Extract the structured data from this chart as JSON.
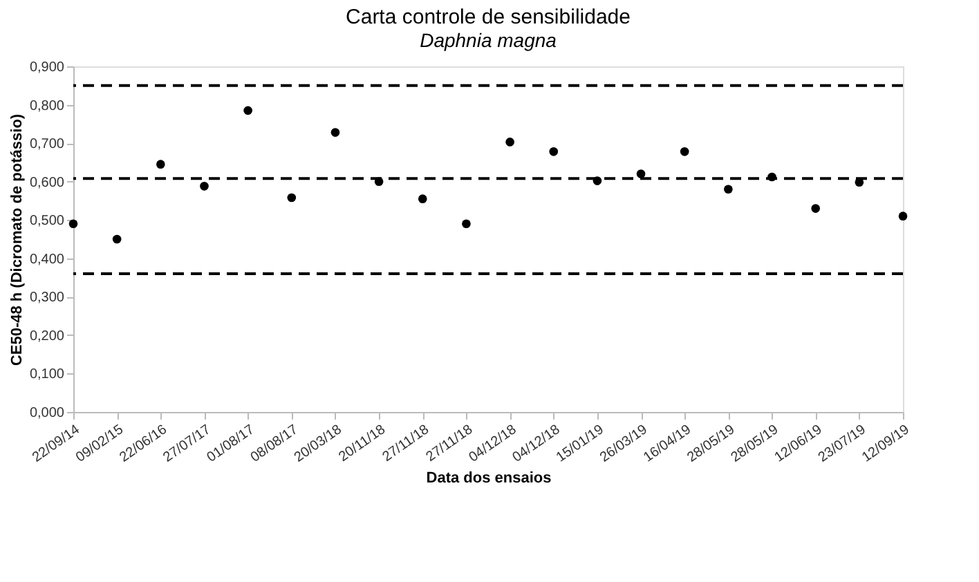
{
  "chart_data": {
    "type": "scatter",
    "title": "Carta controle de sensibilidade",
    "subtitle": "Daphnia magna",
    "xlabel": "Data dos ensaios",
    "ylabel": "CE50-48 h (Dicromato de potássio)",
    "categories": [
      "22/09/14",
      "09/02/15",
      "22/06/16",
      "27/07/17",
      "01/08/17",
      "08/08/17",
      "20/03/18",
      "20/11/18",
      "27/11/18",
      "27/11/18",
      "04/12/18",
      "04/12/18",
      "15/01/19",
      "26/03/19",
      "16/04/19",
      "28/05/19",
      "28/05/19",
      "12/06/19",
      "23/07/19",
      "12/09/19"
    ],
    "series": [
      {
        "color": "#000000",
        "values": [
          0.49,
          0.45,
          0.645,
          0.588,
          0.785,
          0.558,
          0.728,
          0.6,
          0.555,
          0.49,
          0.703,
          0.678,
          0.602,
          0.62,
          0.678,
          0.58,
          0.612,
          0.53,
          0.598,
          0.51
        ]
      }
    ],
    "ylim": [
      0,
      0.9
    ],
    "yticks": [
      {
        "value": 0,
        "label": "0,000"
      },
      {
        "value": 0.1,
        "label": "0,100"
      },
      {
        "value": 0.2,
        "label": "0,200"
      },
      {
        "value": 0.3,
        "label": "0,300"
      },
      {
        "value": 0.4,
        "label": "0,400"
      },
      {
        "value": 0.5,
        "label": "0,500"
      },
      {
        "value": 0.6,
        "label": "0,600"
      },
      {
        "value": 0.7,
        "label": "0,700"
      },
      {
        "value": 0.8,
        "label": "0,800"
      },
      {
        "value": 0.9,
        "label": "0,900"
      }
    ],
    "ref_lines": [
      {
        "axis": "y",
        "value": 0.85,
        "color": "#000000",
        "line_style": "dashed"
      },
      {
        "axis": "y",
        "value": 0.608,
        "color": "#000000",
        "line_style": "dashed"
      },
      {
        "axis": "y",
        "value": 0.36,
        "color": "#000000",
        "line_style": "dashed"
      }
    ],
    "grid": false,
    "marker": "circle"
  }
}
